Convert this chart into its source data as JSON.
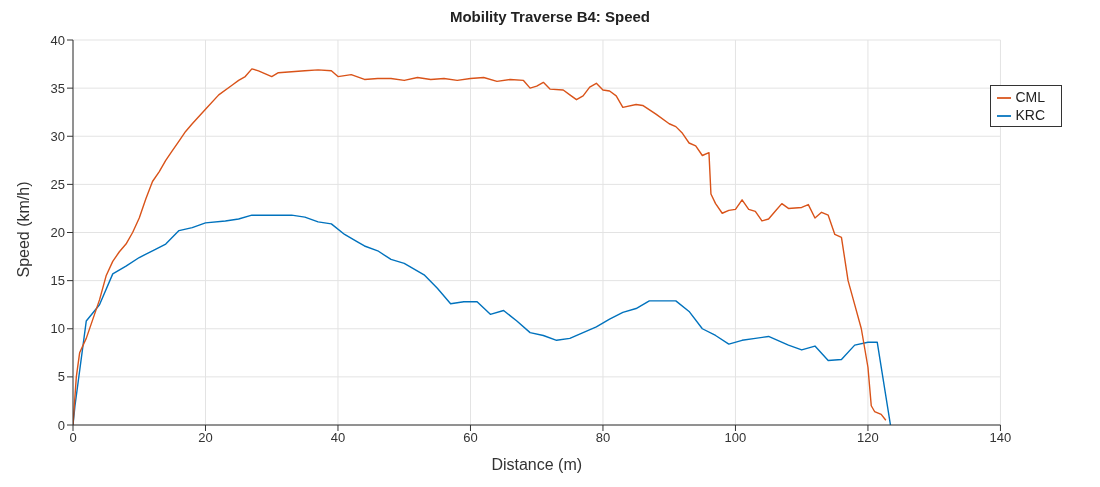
{
  "chart_data": {
    "type": "line",
    "title": "Mobility Traverse B4: Speed",
    "xlabel": "Distance (m)",
    "ylabel": "Speed (km/h)",
    "xlim": [
      0,
      140
    ],
    "xticks": [
      0,
      20,
      40,
      60,
      80,
      100,
      120,
      140
    ],
    "ylim": [
      0,
      40
    ],
    "yticks": [
      0,
      5,
      10,
      15,
      20,
      25,
      30,
      35,
      40
    ],
    "grid": true,
    "legend": "top right",
    "series": [
      {
        "name": "KRC",
        "color": "#0072bd",
        "x": [
          0,
          0.3,
          2,
          4,
          6,
          8,
          10,
          12,
          14,
          16,
          18,
          20,
          23,
          25,
          27,
          30,
          33,
          35,
          37,
          39,
          41,
          43,
          44,
          46,
          48,
          50,
          53,
          55,
          57,
          59,
          61,
          63,
          65,
          67,
          69,
          71,
          73,
          75,
          77,
          79,
          81,
          83,
          85,
          87,
          91,
          93,
          95,
          97,
          99,
          101,
          103,
          105,
          108,
          110,
          112,
          114,
          116,
          118,
          120,
          121.4,
          123.4
        ],
        "values": [
          0,
          2,
          10.8,
          12.5,
          15.7,
          16.5,
          17.4,
          18.1,
          18.8,
          20.2,
          20.5,
          21,
          21.2,
          21.4,
          21.8,
          21.8,
          21.8,
          21.6,
          21.1,
          20.9,
          19.8,
          19,
          18.6,
          18.1,
          17.2,
          16.8,
          15.6,
          14.2,
          12.6,
          12.8,
          12.8,
          11.5,
          11.9,
          10.8,
          9.6,
          9.3,
          8.8,
          9,
          9.6,
          10.2,
          11,
          11.7,
          12.1,
          12.9,
          12.9,
          11.8,
          10,
          9.3,
          8.4,
          8.8,
          9,
          9.2,
          8.3,
          7.8,
          8.2,
          6.7,
          6.8,
          8.3,
          8.6,
          8.6,
          0
        ]
      },
      {
        "name": "CML",
        "color": "#d95319",
        "x": [
          0,
          0.5,
          1,
          2,
          3,
          4,
          5,
          6,
          7,
          8,
          9,
          10,
          11,
          12,
          13,
          14,
          15,
          16,
          17,
          18,
          20,
          22,
          24,
          25,
          26,
          27,
          28,
          30,
          31,
          33,
          35,
          37,
          39,
          40,
          42,
          44,
          46,
          48,
          50,
          52,
          54,
          56,
          58,
          60,
          62,
          64,
          66,
          68,
          69,
          70,
          71,
          72,
          74,
          75,
          76,
          77,
          78,
          79,
          80,
          81,
          82,
          83,
          85,
          86,
          88,
          90,
          91,
          92,
          93,
          94,
          95,
          96,
          96.3,
          97,
          98,
          99,
          100,
          101,
          102,
          103,
          104,
          105,
          106,
          107,
          108,
          110,
          111,
          112,
          113,
          114,
          115,
          116,
          117,
          118,
          119,
          120,
          120.5,
          121,
          122,
          122.7
        ],
        "values": [
          0,
          5,
          7.5,
          9,
          11,
          13,
          15.5,
          17,
          18,
          18.8,
          20,
          21.5,
          23.5,
          25.3,
          26.3,
          27.5,
          28.5,
          29.5,
          30.5,
          31.3,
          32.8,
          34.3,
          35.3,
          35.8,
          36.2,
          37,
          36.8,
          36.2,
          36.6,
          36.7,
          36.8,
          36.9,
          36.8,
          36.2,
          36.4,
          35.9,
          36,
          36,
          35.8,
          36.1,
          35.9,
          36,
          35.8,
          36,
          36.1,
          35.7,
          35.9,
          35.8,
          35,
          35.2,
          35.6,
          34.9,
          34.8,
          34.3,
          33.8,
          34.2,
          35.1,
          35.5,
          34.8,
          34.7,
          34.2,
          33,
          33.3,
          33.2,
          32.3,
          31.3,
          31,
          30.3,
          29.3,
          29,
          28,
          28.3,
          24,
          23,
          22,
          22.3,
          22.4,
          23.4,
          22.4,
          22.2,
          21.2,
          21.4,
          22.2,
          23,
          22.5,
          22.6,
          22.9,
          21.5,
          22.1,
          21.8,
          19.8,
          19.5,
          15,
          12.5,
          10,
          6,
          2,
          1.4,
          1.1,
          0.5
        ]
      }
    ]
  }
}
